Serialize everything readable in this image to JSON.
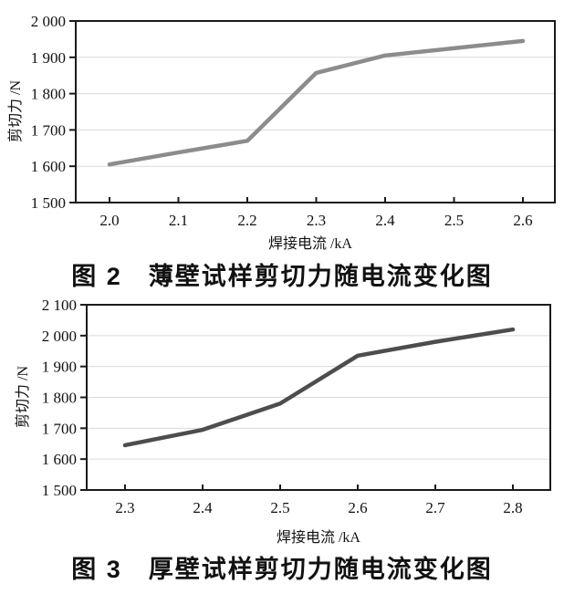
{
  "page": {
    "background": "#ffffff"
  },
  "colors": {
    "axis": "#1a1a1a",
    "grid": "#dadada",
    "text": "#111111"
  },
  "chart_data": [
    {
      "type": "line",
      "title": "图 2　薄壁试样剪切力随电流变化图",
      "xlabel": "焊接电流 /kA",
      "ylabel": "剪切力 /N",
      "x": [
        2.0,
        2.1,
        2.2,
        2.3,
        2.4,
        2.5,
        2.6
      ],
      "x_tick_labels": [
        "2.0",
        "2.1",
        "2.2",
        "2.3",
        "2.4",
        "2.5",
        "2.6"
      ],
      "values": [
        1605,
        1638,
        1670,
        1857,
        1905,
        1925,
        1945
      ],
      "ylim": [
        1500,
        2000
      ],
      "ytick_step": 100,
      "y_tick_labels": [
        "1 500",
        "1 600",
        "1 700",
        "1 800",
        "1 900",
        "2 000"
      ],
      "grid": true,
      "legend": "none",
      "line_color": "#8c8c8c"
    },
    {
      "type": "line",
      "title": "图 3　厚壁试样剪切力随电流变化图",
      "xlabel": "焊接电流 /kA",
      "ylabel": "剪切力 /N",
      "x": [
        2.3,
        2.4,
        2.5,
        2.6,
        2.7,
        2.8
      ],
      "x_tick_labels": [
        "2.3",
        "2.4",
        "2.5",
        "2.6",
        "2.7",
        "2.8"
      ],
      "values": [
        1645,
        1695,
        1780,
        1935,
        1980,
        2020
      ],
      "ylim": [
        1500,
        2100
      ],
      "ytick_step": 100,
      "y_tick_labels": [
        "1 500",
        "1 600",
        "1 700",
        "1 800",
        "1 900",
        "2 000",
        "2 100"
      ],
      "grid": true,
      "legend": "none",
      "line_color": "#4d4d4d"
    }
  ]
}
